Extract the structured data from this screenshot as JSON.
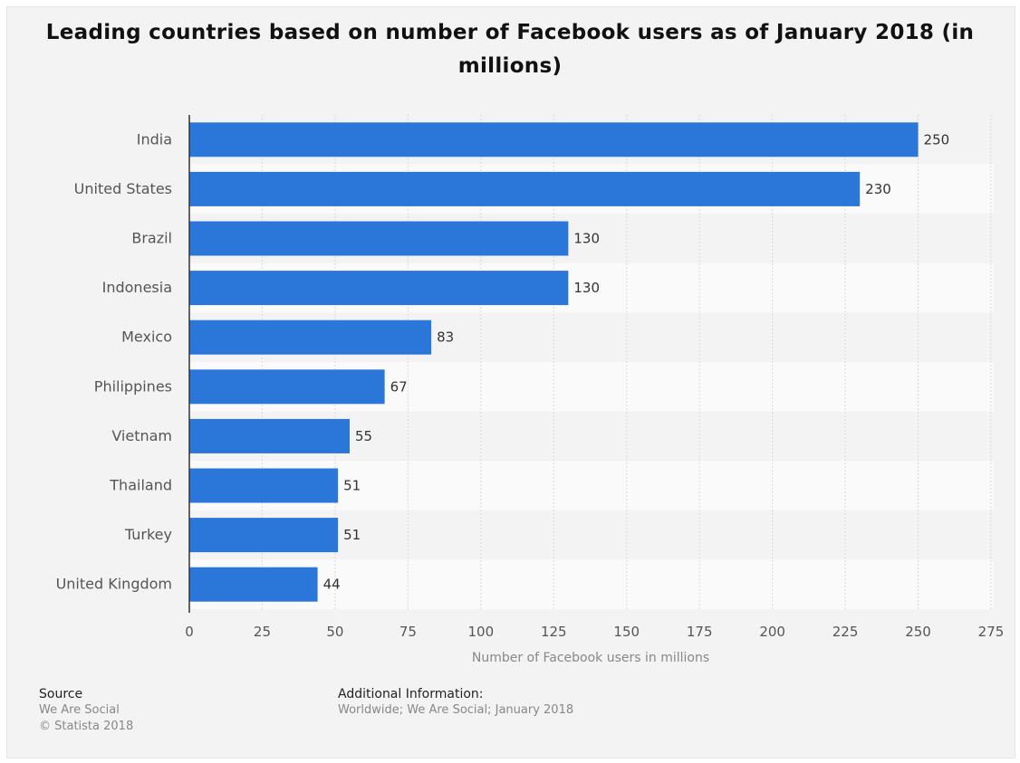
{
  "chart_data": {
    "type": "bar",
    "orientation": "horizontal",
    "title": "Leading countries based on number of Facebook users as of January 2018 (in millions)",
    "categories": [
      "India",
      "United States",
      "Brazil",
      "Indonesia",
      "Mexico",
      "Philippines",
      "Vietnam",
      "Thailand",
      "Turkey",
      "United Kingdom"
    ],
    "values": [
      250,
      230,
      130,
      130,
      83,
      67,
      55,
      51,
      51,
      44
    ],
    "data_labels": [
      "250",
      "230",
      "130",
      "130",
      "83",
      "67",
      "55",
      "51",
      "51",
      "44"
    ],
    "xlabel": "Number of Facebook users in millions",
    "xlim": [
      0,
      275
    ],
    "ticks": [
      "0",
      "25",
      "50",
      "75",
      "100",
      "125",
      "150",
      "175",
      "200",
      "225",
      "250",
      "275"
    ],
    "grid": true,
    "bar_color": "#2b76d9"
  },
  "footer": {
    "source_heading": "Source",
    "source_line1": "We Are Social",
    "source_line2": "© Statista 2018",
    "additional_heading": "Additional Information:",
    "additional_text": "Worldwide; We Are Social; January 2018"
  }
}
